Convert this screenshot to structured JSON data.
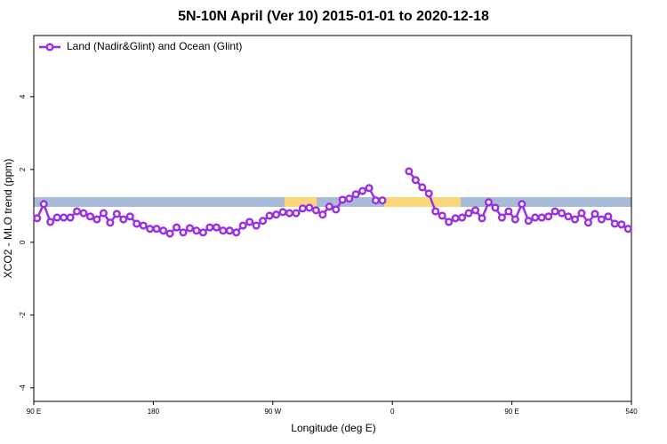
{
  "chart_data": {
    "type": "line",
    "title": "5N-10N April (Ver 10)   2015-01-01 to 2020-12-18",
    "x_label": "Longitude (deg E)",
    "y_label": "XCO2 - MLO trend (ppm)",
    "xlim": [
      90,
      540
    ],
    "ylim": [
      -4.37,
      5.68
    ],
    "xticks": [
      {
        "value": 90,
        "label": "90 E"
      },
      180,
      {
        "value": 270,
        "label": "90 W"
      },
      {
        "value": 360,
        "label": "0"
      },
      {
        "value": 450,
        "label": "90 E"
      },
      540
    ],
    "yticks": [
      -4,
      -2,
      0,
      2,
      4
    ],
    "legend": "top-left",
    "x": [
      92.5,
      97.5,
      102.5,
      107.5,
      112.5,
      117.5,
      122.5,
      127.5,
      132.5,
      137.5,
      142.5,
      147.5,
      152.5,
      157.5,
      162.5,
      167.5,
      172.5,
      177.5,
      182.5,
      187.5,
      192.5,
      197.5,
      202.5,
      207.5,
      212.5,
      217.5,
      222.5,
      227.5,
      232.5,
      237.5,
      242.5,
      247.5,
      252.5,
      257.5,
      262.5,
      267.5,
      272.5,
      277.5,
      282.5,
      287.5,
      292.5,
      297.5,
      302.5,
      307.5,
      312.5,
      317.5,
      322.5,
      327.5,
      332.5,
      337.5,
      342.5,
      347.5,
      352.5,
      357.5,
      362.5,
      367.5,
      372.5,
      377.5,
      382.5,
      387.5,
      392.5,
      397.5,
      402.5,
      407.5,
      412.5,
      417.5,
      422.5,
      427.5,
      432.5,
      437.5,
      442.5,
      447.5,
      452.5,
      457.5,
      462.5,
      467.5,
      472.5,
      477.5,
      482.5,
      487.5,
      492.5,
      497.5,
      502.5,
      507.5,
      512.5,
      517.5,
      522.5,
      527.5,
      532.5,
      537.5
    ],
    "series": [
      {
        "name": "Land (Nadir&Glint) and Ocean (Glint)",
        "color": "#9b30e0",
        "values": [
          0.66,
          1.05,
          0.56,
          0.68,
          0.68,
          0.68,
          0.85,
          0.8,
          0.71,
          0.63,
          0.8,
          0.54,
          0.78,
          0.63,
          0.71,
          0.51,
          0.46,
          0.37,
          0.37,
          0.32,
          0.24,
          0.41,
          0.27,
          0.39,
          0.32,
          0.27,
          0.41,
          0.41,
          0.32,
          0.32,
          0.27,
          0.46,
          0.56,
          0.46,
          0.59,
          0.73,
          0.76,
          0.83,
          0.8,
          0.8,
          0.93,
          0.95,
          0.88,
          0.76,
          0.98,
          0.9,
          1.17,
          1.2,
          1.32,
          1.41,
          1.49,
          1.15,
          1.15,
          null,
          null,
          null,
          1.95,
          1.71,
          1.51,
          1.34,
          0.85,
          0.73,
          0.56,
          0.66,
          0.68,
          0.8,
          0.88,
          0.66,
          1.1,
          0.95,
          0.68,
          0.85,
          0.63,
          1.05,
          0.59,
          0.68,
          0.68,
          0.71,
          0.85,
          0.8,
          0.71,
          0.63,
          0.8,
          0.54,
          0.78,
          0.63,
          0.71,
          0.51,
          0.49,
          0.37
        ]
      }
    ]
  }
}
